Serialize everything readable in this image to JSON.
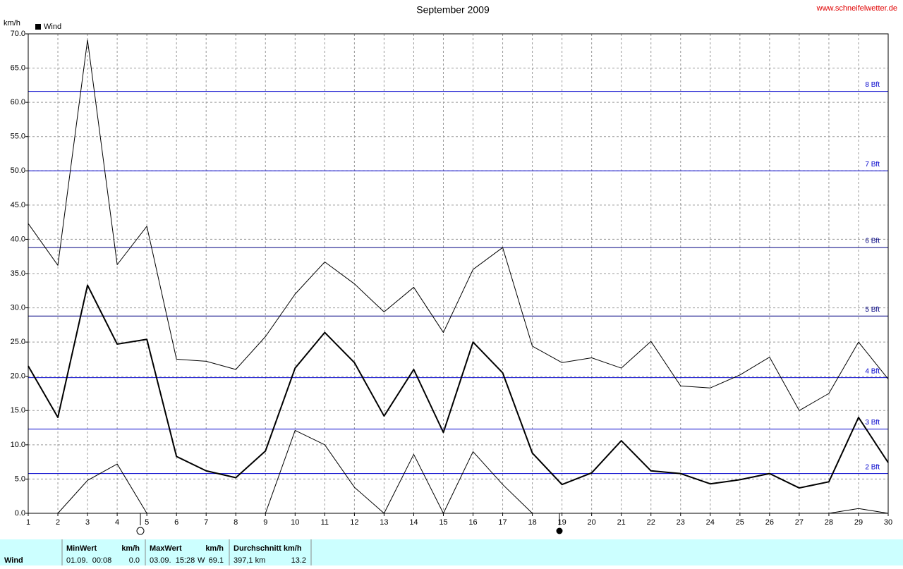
{
  "chart_data": {
    "type": "line",
    "title": "September 2009",
    "source": "www.schneifelwetter.de",
    "ylabel": "km/h",
    "x": [
      1,
      2,
      3,
      4,
      5,
      6,
      7,
      8,
      9,
      10,
      11,
      12,
      13,
      14,
      15,
      16,
      17,
      18,
      19,
      20,
      21,
      22,
      23,
      24,
      25,
      26,
      27,
      28,
      29,
      30
    ],
    "xlim": [
      1,
      30
    ],
    "xticks": [
      1,
      2,
      3,
      4,
      5,
      6,
      7,
      8,
      9,
      10,
      11,
      12,
      13,
      14,
      15,
      16,
      17,
      18,
      19,
      20,
      21,
      22,
      23,
      24,
      25,
      26,
      27,
      28,
      29,
      30
    ],
    "ylim": [
      0,
      70
    ],
    "yticks": [
      {
        "value": 0,
        "label": "0.0"
      },
      {
        "value": 5,
        "label": "5.0"
      },
      {
        "value": 10,
        "label": "10.0"
      },
      {
        "value": 15,
        "label": "15.0"
      },
      {
        "value": 20,
        "label": "20.0"
      },
      {
        "value": 25,
        "label": "25.0"
      },
      {
        "value": 30,
        "label": "30.0"
      },
      {
        "value": 35,
        "label": "35.0"
      },
      {
        "value": 40,
        "label": "40.0"
      },
      {
        "value": 45,
        "label": "45.0"
      },
      {
        "value": 50,
        "label": "50.0"
      },
      {
        "value": 55,
        "label": "55.0"
      },
      {
        "value": 60,
        "label": "60.0"
      },
      {
        "value": 65,
        "label": "65.0"
      },
      {
        "value": 70,
        "label": "70.0"
      }
    ],
    "grid": true,
    "legend": "top-left",
    "series": [
      {
        "name": "Wind",
        "color": "#000000",
        "width": 2,
        "values": [
          21.5,
          14.0,
          33.3,
          24.7,
          25.4,
          8.3,
          6.2,
          5.2,
          9.1,
          21.2,
          26.4,
          22.0,
          14.2,
          21.0,
          11.8,
          25.0,
          20.5,
          8.8,
          4.2,
          5.9,
          10.6,
          6.2,
          5.8,
          4.3,
          4.9,
          5.8,
          3.7,
          4.6,
          14.0,
          7.4
        ]
      },
      {
        "color": "#000000",
        "width": 1,
        "values": [
          42.3,
          36.2,
          69.1,
          36.3,
          41.9,
          22.5,
          22.2,
          21.0,
          25.8,
          32.0,
          36.7,
          33.5,
          29.4,
          33.0,
          26.4,
          35.6,
          38.8,
          24.4,
          22.0,
          22.7,
          21.2,
          25.1,
          18.6,
          18.3,
          20.2,
          22.8,
          15.0,
          17.5,
          25.0,
          19.6
        ]
      },
      {
        "color": "#000000",
        "width": 1,
        "values": [
          0,
          0,
          4.8,
          7.2,
          0,
          0,
          0,
          0,
          0,
          12.1,
          10.0,
          3.8,
          0,
          8.6,
          0,
          9.0,
          4.2,
          0,
          0,
          0,
          0,
          0,
          0,
          0,
          0,
          0,
          0,
          0,
          0.7,
          0
        ]
      }
    ],
    "reference_lines": [
      {
        "value": 5.8,
        "label": "2 Bft",
        "color": "#0000cc"
      },
      {
        "value": 12.3,
        "label": "3 Bft",
        "color": "#0000cc"
      },
      {
        "value": 19.8,
        "label": "4 Bft",
        "color": "#0000cc"
      },
      {
        "value": 28.8,
        "label": "5 Bft",
        "color": "#000080"
      },
      {
        "value": 38.8,
        "label": "6 Bft",
        "color": "#000080"
      },
      {
        "value": 50.0,
        "label": "7 Bft",
        "color": "#0000cc"
      },
      {
        "value": 61.6,
        "label": "8 Bft",
        "color": "#0000cc"
      }
    ]
  },
  "summary": {
    "row_label": "Wind",
    "min": {
      "header": "MinWert",
      "unit": "km/h",
      "when": "01.09.  00:08",
      "value": "0.0"
    },
    "max": {
      "header": "MaxWert",
      "unit": "km/h",
      "when": "03.09.  15:28",
      "direction": "W",
      "value": "69.1"
    },
    "avg": {
      "header": "Durchschnitt km/h",
      "total": "397,1 km",
      "value": "13.2"
    }
  }
}
